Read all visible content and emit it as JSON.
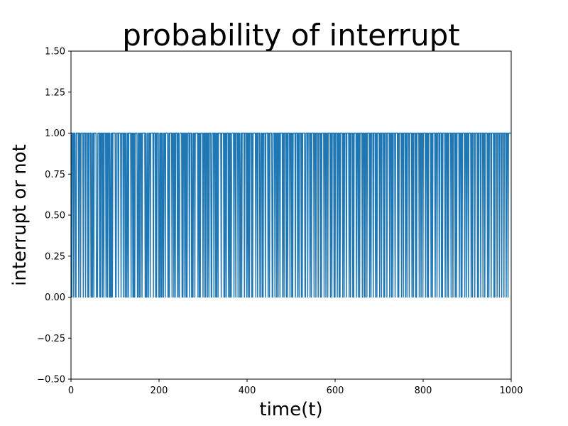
{
  "chart_data": {
    "type": "line",
    "title": "probability of interrupt",
    "xlabel": "time(t)",
    "ylabel": "interrupt or not",
    "xlim": [
      0,
      1000
    ],
    "ylim": [
      -0.5,
      1.5
    ],
    "xticks": [
      0,
      200,
      400,
      600,
      800,
      1000
    ],
    "xtick_labels": [
      "0",
      "200",
      "400",
      "600",
      "800",
      "1000"
    ],
    "yticks": [
      -0.5,
      -0.25,
      0.0,
      0.25,
      0.5,
      0.75,
      1.0,
      1.25,
      1.5
    ],
    "ytick_labels": [
      "−0.50",
      "−0.25",
      "0.00",
      "0.25",
      "0.50",
      "0.75",
      "1.00",
      "1.25",
      "1.50"
    ],
    "grid": false,
    "series": [
      {
        "color": "#1f77b4",
        "x_start": 0,
        "x_end": 999,
        "values": [
          1,
          1,
          0,
          1,
          1,
          1,
          0,
          1,
          1,
          1,
          0,
          0,
          1,
          1,
          1,
          1,
          1,
          0,
          1,
          1,
          1,
          0,
          1,
          1,
          1,
          1,
          1,
          0,
          1,
          1,
          1,
          1,
          0,
          1,
          1,
          1,
          1,
          0,
          1,
          0,
          1,
          1,
          1,
          1,
          0,
          1,
          0,
          0,
          1,
          1,
          0,
          1,
          1,
          1,
          1,
          1,
          0,
          0,
          0,
          1,
          1,
          1,
          1,
          0,
          1,
          0,
          1,
          1,
          1,
          0,
          1,
          1,
          0,
          1,
          1,
          1,
          1,
          0,
          1,
          1,
          0,
          1,
          1,
          1,
          0,
          1,
          0,
          0,
          1,
          0,
          1,
          0,
          1,
          1,
          1,
          1,
          1,
          1,
          0,
          0,
          1,
          1,
          1,
          1,
          0,
          1,
          1,
          1,
          1,
          1,
          0,
          1,
          1,
          1,
          1,
          0,
          1,
          1,
          1,
          0,
          1,
          1,
          0,
          0,
          1,
          1,
          0,
          1,
          1,
          1,
          1,
          1,
          0,
          1,
          1,
          1,
          0,
          1,
          0,
          1,
          0,
          1,
          1,
          1,
          1,
          1,
          0,
          0,
          1,
          1,
          0,
          1,
          0,
          1,
          1,
          1,
          0,
          1,
          1,
          1,
          1,
          1,
          1,
          0,
          1,
          0,
          0,
          1,
          1,
          0,
          0,
          1,
          1,
          1,
          0,
          1,
          1,
          1,
          1,
          1,
          1,
          0,
          1,
          1,
          1,
          1,
          0,
          1,
          0,
          1,
          1,
          1,
          1,
          0,
          0,
          1,
          1,
          0,
          1,
          0,
          1,
          1,
          0,
          0,
          1,
          1,
          1,
          0,
          1,
          1,
          1,
          1,
          1,
          0,
          0,
          1,
          0,
          1,
          1,
          1,
          1,
          1,
          0,
          1,
          1,
          1,
          0,
          1,
          1,
          0,
          1,
          1,
          1,
          1,
          0,
          1,
          1,
          0,
          0,
          1,
          1,
          1,
          1,
          1,
          0,
          1,
          0,
          1,
          1,
          1,
          0,
          1,
          1,
          0,
          1,
          0,
          1,
          1,
          1,
          1,
          0,
          1,
          1,
          1,
          1,
          0,
          1,
          0,
          0,
          1,
          1,
          1,
          0,
          1,
          1,
          1,
          1,
          1,
          1,
          0,
          1,
          1,
          0,
          1,
          0,
          1,
          1,
          1,
          1,
          1,
          0,
          1,
          1,
          1,
          0,
          1,
          0,
          1,
          1,
          1,
          0,
          1,
          1,
          0,
          1,
          1,
          1,
          1,
          0,
          0,
          1,
          1,
          1,
          1,
          0,
          1,
          1,
          1,
          0,
          1,
          0,
          1,
          1,
          0,
          1,
          1,
          1,
          1,
          1,
          1,
          0,
          1,
          1,
          1,
          1,
          1,
          0,
          1,
          0,
          1,
          1,
          0,
          1,
          1,
          1,
          1,
          0,
          1,
          1,
          0,
          1,
          0,
          0,
          1,
          1,
          1,
          1,
          1,
          0,
          1,
          1,
          1,
          0,
          1,
          1,
          1,
          1,
          0,
          1,
          1,
          1,
          0,
          0,
          1,
          1,
          0,
          1,
          1,
          1,
          1,
          1,
          0,
          1,
          1,
          1,
          1,
          0,
          1,
          1,
          0,
          1,
          1,
          0,
          1,
          1,
          1,
          1,
          0,
          1,
          0,
          1,
          1,
          1,
          1,
          1,
          1,
          0,
          1,
          1,
          1,
          0,
          1,
          1,
          1,
          1,
          0,
          0,
          1,
          1,
          1,
          0,
          1,
          0,
          1,
          1,
          1,
          1,
          0,
          1,
          1,
          1,
          1,
          1,
          0,
          1,
          1,
          0,
          1,
          1,
          1,
          1,
          1,
          0,
          0,
          1,
          1,
          1,
          1,
          0,
          1,
          1,
          1,
          0,
          1,
          1,
          0,
          1,
          1,
          1,
          0,
          1,
          1,
          1,
          1,
          1,
          0,
          1,
          1,
          0,
          1,
          1,
          1,
          1,
          0,
          1,
          1,
          0,
          1,
          1,
          1,
          1,
          0,
          1,
          1,
          1,
          0,
          1,
          0,
          1,
          1,
          1,
          1,
          1,
          0,
          1,
          1,
          1,
          1,
          0,
          1,
          1,
          0,
          1,
          1,
          1,
          1,
          0,
          1,
          0,
          1,
          1,
          1,
          1,
          1,
          0,
          0,
          1,
          1,
          1,
          1,
          0,
          1,
          1,
          1,
          1,
          0,
          1,
          1,
          0,
          1,
          1,
          1,
          1,
          1,
          0,
          1,
          1,
          1,
          0,
          1,
          1,
          1,
          1,
          0,
          1,
          1,
          1,
          1,
          0,
          1,
          0,
          1,
          1,
          1,
          1,
          1,
          0,
          1,
          1,
          1,
          0,
          1,
          1,
          1,
          0,
          1,
          1,
          1,
          1,
          1,
          0,
          1,
          1,
          0,
          1,
          1,
          1,
          1,
          0,
          1,
          0,
          1,
          1,
          1,
          1,
          0,
          1,
          1,
          1,
          0,
          1,
          0,
          1,
          1,
          1,
          1,
          1,
          0,
          1,
          1,
          0,
          1,
          1,
          1,
          1,
          0,
          1,
          1,
          1,
          1,
          1,
          0,
          1,
          1,
          0,
          1,
          1,
          1,
          1,
          0,
          1,
          0,
          1,
          1,
          1,
          1,
          1,
          0,
          1,
          1,
          1,
          0,
          1,
          1,
          0,
          1,
          1,
          1,
          1,
          1,
          0,
          1,
          1,
          1,
          0,
          1,
          0,
          1,
          1,
          1,
          0,
          1,
          1,
          1,
          1,
          1,
          0,
          1,
          1,
          0,
          1,
          1,
          1,
          1,
          0,
          1,
          1,
          1,
          1,
          0,
          1,
          1,
          0,
          1,
          1,
          1,
          1,
          1,
          0,
          1,
          1,
          1,
          0,
          1,
          1,
          1,
          1,
          0,
          1,
          0,
          1,
          1,
          1,
          1,
          0,
          1,
          1,
          1,
          1,
          1,
          0,
          1,
          1,
          1,
          0,
          1,
          1,
          0,
          1,
          1,
          1,
          1,
          0,
          1,
          1,
          1,
          1,
          1,
          0,
          1,
          0,
          1,
          1,
          1,
          1,
          1,
          0,
          1,
          1,
          1,
          0,
          1,
          1,
          1,
          1,
          0,
          1,
          1,
          0,
          1,
          1,
          1,
          1,
          0,
          1,
          1,
          1,
          1,
          1,
          0,
          1,
          1,
          0,
          1,
          1,
          1,
          1,
          0,
          1,
          0,
          1,
          1,
          1,
          1,
          1,
          0,
          1,
          1,
          1,
          0,
          1,
          1,
          1,
          0,
          1,
          1,
          1,
          1,
          1,
          0,
          1,
          1,
          1,
          0,
          1,
          0,
          1,
          1,
          1,
          1,
          1,
          0,
          1,
          1,
          0,
          1,
          1,
          1,
          1,
          1,
          0,
          1,
          1,
          1,
          0,
          1,
          1,
          1,
          1,
          0,
          1,
          1,
          1,
          1,
          0,
          1,
          0,
          1,
          1,
          1,
          1,
          1,
          0,
          1,
          1,
          1,
          0,
          1,
          1,
          0,
          1,
          1,
          1,
          1,
          1,
          0,
          1,
          1,
          1,
          0,
          1,
          1,
          1,
          1,
          0,
          1,
          1,
          0,
          1,
          1,
          1,
          1,
          1,
          0,
          1,
          1,
          1,
          0,
          1,
          0,
          1,
          1,
          1,
          1,
          1,
          0,
          1,
          1,
          1,
          0,
          1,
          1,
          1,
          0,
          1,
          1,
          1,
          1,
          1,
          0,
          1,
          1,
          0,
          1,
          1,
          1,
          1,
          0,
          1,
          1,
          1,
          1,
          1,
          0,
          1,
          0,
          1,
          1,
          1,
          1,
          0,
          1,
          1,
          1,
          1,
          0,
          1,
          1,
          1,
          0,
          1,
          1,
          1,
          1,
          1,
          0,
          1,
          1,
          0,
          1,
          1,
          1,
          1,
          0,
          1,
          1,
          1,
          1,
          1,
          0,
          1,
          0,
          1,
          1,
          1,
          1,
          0,
          1,
          1,
          1,
          1,
          0,
          1,
          1,
          1,
          1,
          0,
          1,
          1,
          1,
          1,
          0,
          1,
          1,
          1,
          1,
          0,
          1,
          1,
          1,
          0,
          1,
          1,
          1,
          1,
          1,
          1
        ]
      }
    ]
  }
}
